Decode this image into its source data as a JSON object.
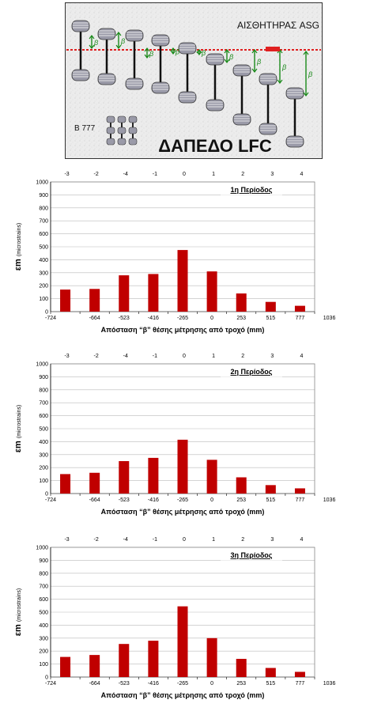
{
  "diagram": {
    "sensor_label": "ΑΙΣΘΗΤΗΡΑΣ ASG",
    "aircraft_label": "B 777",
    "floor_label": "ΔΑΠΕΔΟ LFC",
    "beta_symbol": "β",
    "colors": {
      "panel_bg": "#e8e8e8",
      "wheel": "#9a9aa8",
      "axle": "#111111",
      "sensor_line": "#e02020",
      "arrow": "#1a8a1a"
    }
  },
  "chart_data": [
    {
      "type": "bar",
      "title": "1η Περίοδος",
      "ylabel_main": "εm",
      "ylabel_sub": "(microstrains)",
      "xlabel": "Απόσταση “β” θέσης μέτρησης από τροχό (mm)",
      "secondary_x_labels": [
        "-3",
        "-2",
        "-4",
        "-1",
        "0",
        "1",
        "2",
        "3",
        "4"
      ],
      "x_tick_labels": [
        "-724",
        "-664",
        "-523",
        "-416",
        "-265",
        "0",
        "253",
        "515",
        "777",
        "1036"
      ],
      "categories": [
        "-664",
        "-523",
        "-416",
        "-265",
        "0",
        "253",
        "515",
        "777",
        "1036"
      ],
      "values": [
        170,
        175,
        280,
        290,
        475,
        310,
        140,
        75,
        45
      ],
      "ylim": [
        0,
        1000
      ],
      "yticks": [
        "0",
        "100",
        "200",
        "300",
        "400",
        "500",
        "600",
        "700",
        "800",
        "900",
        "1000"
      ],
      "grid": true,
      "bar_color": "#c00000"
    },
    {
      "type": "bar",
      "title": "2η Περίοδος",
      "ylabel_main": "εm",
      "ylabel_sub": "(microstrains)",
      "xlabel": "Απόσταση “β” θέσης μέτρησης από τροχό (mm)",
      "secondary_x_labels": [
        "-3",
        "-2",
        "-4",
        "-1",
        "0",
        "1",
        "2",
        "3",
        "4"
      ],
      "x_tick_labels": [
        "-724",
        "-664",
        "-523",
        "-416",
        "-265",
        "0",
        "253",
        "515",
        "777",
        "1036"
      ],
      "categories": [
        "-664",
        "-523",
        "-416",
        "-265",
        "0",
        "253",
        "515",
        "777",
        "1036"
      ],
      "values": [
        150,
        160,
        250,
        275,
        415,
        260,
        125,
        65,
        40
      ],
      "ylim": [
        0,
        1000
      ],
      "yticks": [
        "0",
        "100",
        "200",
        "300",
        "400",
        "500",
        "600",
        "700",
        "800",
        "900",
        "1000"
      ],
      "grid": true,
      "bar_color": "#c00000"
    },
    {
      "type": "bar",
      "title": "3η Περίοδος",
      "ylabel_main": "εm",
      "ylabel_sub": "(microstrains)",
      "xlabel": "Απόσταση “β” θέσης μέτρησης από τροχό (mm)",
      "secondary_x_labels": [
        "-3",
        "-2",
        "-4",
        "-1",
        "0",
        "1",
        "2",
        "3",
        "4"
      ],
      "x_tick_labels": [
        "-724",
        "-664",
        "-523",
        "-416",
        "-265",
        "0",
        "253",
        "515",
        "777",
        "1036"
      ],
      "categories": [
        "-664",
        "-523",
        "-416",
        "-265",
        "0",
        "253",
        "515",
        "777",
        "1036"
      ],
      "values": [
        155,
        170,
        255,
        280,
        545,
        300,
        140,
        70,
        40
      ],
      "ylim": [
        0,
        1000
      ],
      "yticks": [
        "0",
        "100",
        "200",
        "300",
        "400",
        "500",
        "600",
        "700",
        "800",
        "900",
        "1000"
      ],
      "grid": true,
      "bar_color": "#c00000"
    }
  ]
}
